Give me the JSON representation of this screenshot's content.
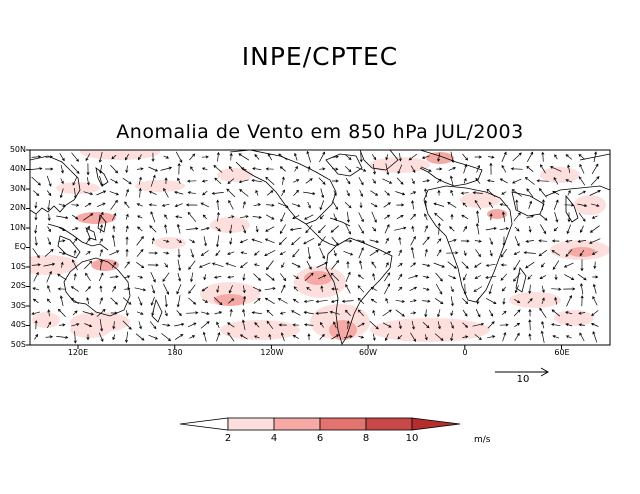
{
  "header": {
    "organization": "INPE/CPTEC",
    "title": "Anomalia de Vento em 850 hPa JUL/2003"
  },
  "map": {
    "type": "vector wind anomaly map",
    "level": "850 hPa",
    "period": "JUL/2003",
    "lat_labels": [
      "50N",
      "40N",
      "30N",
      "20N",
      "10N",
      "EQ",
      "10S",
      "20S",
      "30S",
      "40S",
      "50S"
    ],
    "lon_labels": [
      "120E",
      "180",
      "120W",
      "60W",
      "0",
      "60E"
    ],
    "reference_vector": {
      "label": "10"
    }
  },
  "colorbar": {
    "labels": [
      "2",
      "4",
      "6",
      "8",
      "10"
    ],
    "unit": "m/s",
    "colors": [
      "#ffffff",
      "#fde0de",
      "#f5aaa6",
      "#e27470",
      "#c84848",
      "#b52e2e"
    ]
  },
  "colors": {
    "frame": "#000000",
    "coast": "#000000",
    "shade_light": "#fde0de",
    "shade_medium": "#f5aaa6"
  }
}
